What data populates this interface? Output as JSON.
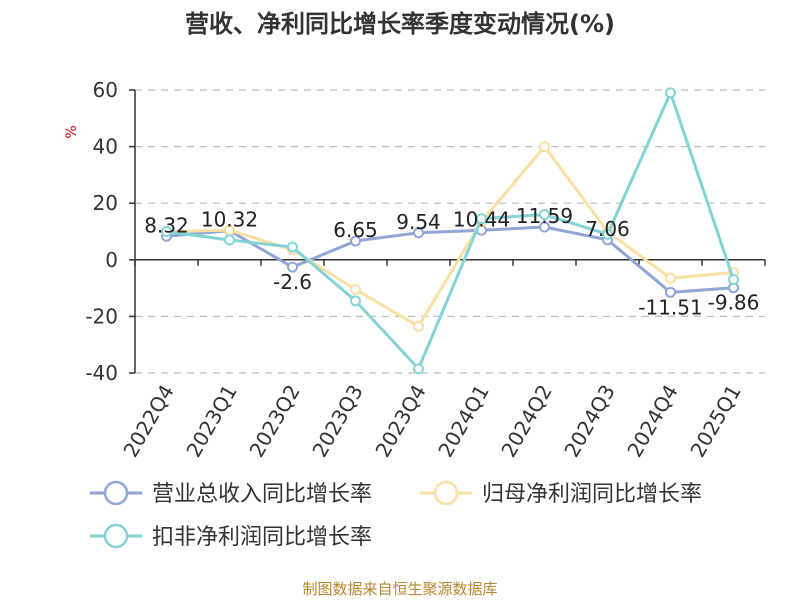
{
  "chart_data": {
    "type": "line",
    "title": "营收、净利同比增长率季度变动情况(%)",
    "ylabel": "%",
    "ylim": [
      -40,
      60
    ],
    "yticks": [
      60,
      40,
      20,
      0,
      -20,
      -40
    ],
    "grid": true,
    "legend_position": "bottom",
    "categories": [
      "2022Q4",
      "2023Q1",
      "2023Q2",
      "2023Q3",
      "2023Q4",
      "2024Q1",
      "2024Q2",
      "2024Q3",
      "2024Q4",
      "2025Q1"
    ],
    "series": [
      {
        "name": "营业总收入同比增长率",
        "color": "#8fa6d6",
        "values": [
          8.32,
          10.32,
          -2.6,
          6.65,
          9.54,
          10.44,
          11.59,
          7.06,
          -11.51,
          -9.86
        ],
        "labels": [
          "8.32",
          "10.32",
          "-2.6",
          "6.65",
          "9.54",
          "10.44",
          "11.59",
          "7.06",
          "-11.51",
          "-9.86"
        ]
      },
      {
        "name": "归母净利润同比增长率",
        "color": "#fbdfa3",
        "values": [
          10,
          10.5,
          3.5,
          -10.5,
          -23.5,
          13.5,
          40,
          10,
          -6.5,
          -4.5
        ]
      },
      {
        "name": "扣非净利润同比增长率",
        "color": "#84d4d6",
        "values": [
          10,
          7,
          4.5,
          -14.5,
          -38.5,
          14.5,
          16,
          9,
          59,
          -7
        ]
      }
    ]
  },
  "source": "制图数据来自恒生聚源数据库"
}
